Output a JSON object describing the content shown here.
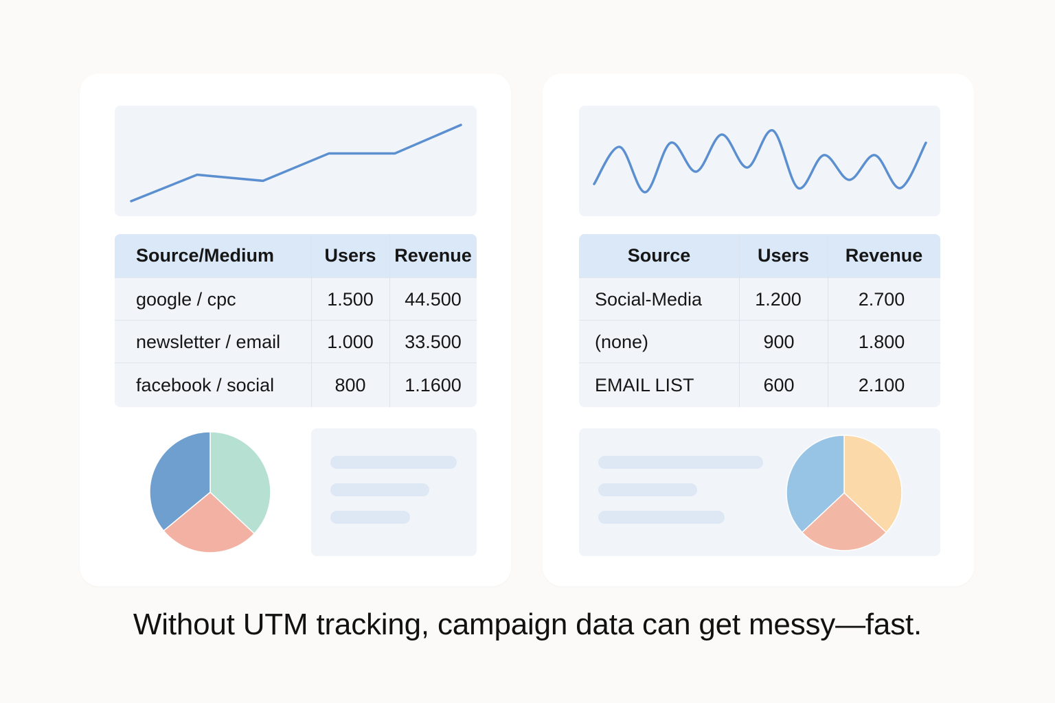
{
  "left_panel": {
    "chart_data": {
      "type": "line",
      "trend": "steady-increase",
      "values": [
        1,
        3.6,
        3.0,
        5.7,
        5.7,
        8.5
      ],
      "color": "#5b8fd0"
    },
    "table": {
      "headers": [
        "Source/Medium",
        "Users",
        "Revenue"
      ],
      "rows": [
        [
          "google / cpc",
          "1.500",
          "44.500"
        ],
        [
          "newsletter / email",
          "1.000",
          "33.500"
        ],
        [
          "facebook / social",
          "800",
          "1.1600"
        ]
      ]
    },
    "pie_chart": {
      "type": "pie",
      "slices": [
        {
          "value": 37,
          "color": "#b5e0d2"
        },
        {
          "value": 27,
          "color": "#f3b1a3"
        },
        {
          "value": 36,
          "color": "#6e9fcf"
        }
      ]
    }
  },
  "right_panel": {
    "chart_data": {
      "type": "line",
      "trend": "erratic",
      "values": [
        2,
        6.5,
        1,
        7,
        3.5,
        8,
        4,
        8.5,
        1.5,
        5.5,
        2.5,
        5.5,
        1.5,
        7
      ],
      "color": "#5b8fd0"
    },
    "table": {
      "headers": [
        "Source",
        "Users",
        "Revenue"
      ],
      "rows": [
        [
          "Social-Media",
          "1.200",
          "2.700"
        ],
        [
          "(none)",
          "900",
          "1.800"
        ],
        [
          "EMAIL LIST",
          "600",
          "2.100"
        ]
      ]
    },
    "pie_chart": {
      "type": "pie",
      "slices": [
        {
          "value": 37,
          "color": "#fbd9a9"
        },
        {
          "value": 26,
          "color": "#f3b7a5"
        },
        {
          "value": 37,
          "color": "#97c4e5"
        }
      ]
    }
  },
  "caption": "Without UTM tracking, campaign data can get messy—fast."
}
